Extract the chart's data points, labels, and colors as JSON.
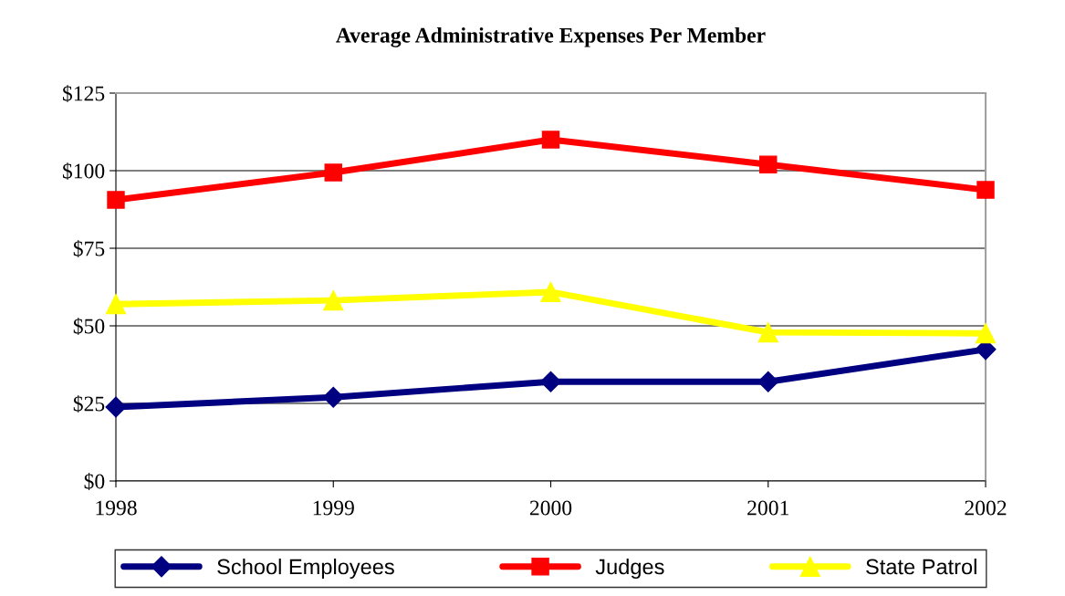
{
  "chart_data": {
    "type": "line",
    "title": "Average Administrative Expenses Per Member",
    "categories": [
      "1998",
      "1999",
      "2000",
      "2001",
      "2002"
    ],
    "series": [
      {
        "name": "School Employees",
        "color": "#000080",
        "marker": "diamond",
        "values": [
          23.8,
          27,
          32,
          32,
          42.4
        ]
      },
      {
        "name": "Judges",
        "color": "#ff0000",
        "marker": "square",
        "values": [
          90.6,
          99.4,
          110,
          102,
          93.8
        ]
      },
      {
        "name": "State Patrol",
        "color": "#ffff00",
        "marker": "triangle",
        "values": [
          57,
          58.2,
          60.9,
          47.9,
          47.6
        ]
      }
    ],
    "ylim": [
      0,
      125
    ],
    "yticks": [
      {
        "value": 0,
        "label": "$0"
      },
      {
        "value": 25,
        "label": "$25"
      },
      {
        "value": 50,
        "label": "$50"
      },
      {
        "value": 75,
        "label": "$75"
      },
      {
        "value": 100,
        "label": "$100"
      },
      {
        "value": 125,
        "label": "$125"
      }
    ],
    "grid": "y",
    "legend": "bottom",
    "line_style": "solid"
  }
}
